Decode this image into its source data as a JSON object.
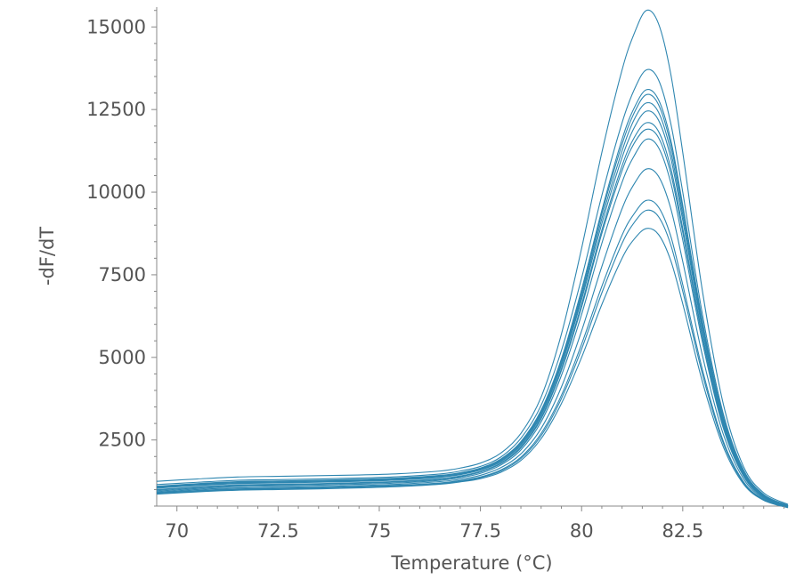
{
  "chart_data": {
    "type": "line",
    "title": "",
    "xlabel": "Temperature (°C)",
    "ylabel": "-dF/dT",
    "xlim": [
      69.5,
      85.1
    ],
    "ylim": [
      500,
      15600
    ],
    "x_ticks": [
      70,
      72.5,
      75,
      77.5,
      80,
      82.5
    ],
    "x_tick_labels": [
      "70",
      "72.5",
      "75",
      "77.5",
      "80",
      "82.5"
    ],
    "y_ticks": [
      2500,
      5000,
      7500,
      10000,
      12500,
      15000
    ],
    "y_tick_labels": [
      "2500",
      "5000",
      "7500",
      "10000",
      "12500",
      "15000"
    ],
    "grid": false,
    "line_color": "#2e86b0",
    "x_samples": [
      69.5,
      70.5,
      71.5,
      72.5,
      73.5,
      74.5,
      75.5,
      76.5,
      77.0,
      77.5,
      78.0,
      78.5,
      79.0,
      79.5,
      80.0,
      80.5,
      81.0,
      81.3,
      81.6,
      81.9,
      82.2,
      82.5,
      83.0,
      83.5,
      84.0,
      84.5,
      85.1
    ],
    "series": [
      {
        "values": [
          1250,
          1320,
          1380,
          1400,
          1420,
          1440,
          1480,
          1560,
          1650,
          1800,
          2100,
          2700,
          3800,
          5700,
          8300,
          11200,
          13700,
          14800,
          15500,
          15100,
          13600,
          11200,
          6900,
          3600,
          1700,
          900,
          550
        ]
      },
      {
        "values": [
          1150,
          1220,
          1280,
          1300,
          1320,
          1350,
          1390,
          1470,
          1560,
          1700,
          1980,
          2550,
          3550,
          5200,
          7400,
          9900,
          12100,
          13100,
          13700,
          13400,
          12100,
          10000,
          6200,
          3300,
          1600,
          850,
          520
        ]
      },
      {
        "values": [
          1100,
          1180,
          1240,
          1260,
          1280,
          1310,
          1350,
          1430,
          1510,
          1650,
          1920,
          2450,
          3400,
          4950,
          7050,
          9450,
          11600,
          12550,
          13100,
          12800,
          11600,
          9600,
          6000,
          3200,
          1550,
          830,
          510
        ]
      },
      {
        "values": [
          1080,
          1160,
          1220,
          1240,
          1260,
          1290,
          1330,
          1410,
          1490,
          1630,
          1900,
          2420,
          3350,
          4900,
          6950,
          9350,
          11450,
          12400,
          12950,
          12650,
          11450,
          9500,
          5950,
          3150,
          1530,
          820,
          505
        ]
      },
      {
        "values": [
          1060,
          1140,
          1200,
          1220,
          1240,
          1270,
          1310,
          1390,
          1470,
          1610,
          1870,
          2380,
          3300,
          4820,
          6850,
          9200,
          11250,
          12200,
          12700,
          12420,
          11250,
          9320,
          5850,
          3100,
          1510,
          810,
          500
        ]
      },
      {
        "values": [
          1040,
          1120,
          1180,
          1200,
          1220,
          1250,
          1290,
          1370,
          1450,
          1590,
          1840,
          2340,
          3250,
          4750,
          6750,
          9050,
          11050,
          11950,
          12450,
          12180,
          11050,
          9150,
          5750,
          3050,
          1490,
          800,
          495
        ]
      },
      {
        "values": [
          1000,
          1080,
          1140,
          1160,
          1180,
          1210,
          1250,
          1330,
          1410,
          1550,
          1800,
          2290,
          3180,
          4650,
          6600,
          8850,
          10800,
          11650,
          12100,
          11840,
          10750,
          8900,
          5600,
          2980,
          1460,
          785,
          490
        ]
      },
      {
        "values": [
          980,
          1060,
          1120,
          1140,
          1160,
          1190,
          1230,
          1310,
          1390,
          1530,
          1780,
          2260,
          3140,
          4600,
          6520,
          8750,
          10650,
          11480,
          11900,
          11650,
          10580,
          8780,
          5520,
          2940,
          1440,
          775,
          485
        ]
      },
      {
        "values": [
          950,
          1030,
          1090,
          1110,
          1130,
          1160,
          1200,
          1280,
          1360,
          1490,
          1740,
          2200,
          3050,
          4450,
          6300,
          8450,
          10300,
          11100,
          11600,
          11350,
          10300,
          8550,
          5380,
          2870,
          1410,
          760,
          480
        ]
      },
      {
        "values": [
          920,
          1000,
          1050,
          1070,
          1090,
          1120,
          1160,
          1240,
          1310,
          1430,
          1660,
          2080,
          2850,
          4100,
          5800,
          7750,
          9500,
          10250,
          10700,
          10480,
          9520,
          7900,
          4980,
          2680,
          1330,
          730,
          470
        ]
      },
      {
        "values": [
          900,
          970,
          1020,
          1040,
          1060,
          1090,
          1130,
          1200,
          1270,
          1380,
          1590,
          1980,
          2700,
          3850,
          5400,
          7150,
          8700,
          9350,
          9750,
          9550,
          8680,
          7200,
          4560,
          2470,
          1240,
          700,
          460
        ]
      },
      {
        "values": [
          880,
          950,
          1000,
          1020,
          1040,
          1070,
          1110,
          1180,
          1250,
          1360,
          1560,
          1940,
          2630,
          3750,
          5250,
          6950,
          8450,
          9080,
          9450,
          9260,
          8420,
          7000,
          4430,
          2410,
          1210,
          690,
          455
        ]
      },
      {
        "values": [
          860,
          930,
          980,
          1000,
          1020,
          1050,
          1090,
          1160,
          1230,
          1330,
          1520,
          1880,
          2540,
          3600,
          5000,
          6600,
          8000,
          8580,
          8900,
          8720,
          7940,
          6620,
          4200,
          2300,
          1170,
          675,
          450
        ]
      }
    ]
  }
}
